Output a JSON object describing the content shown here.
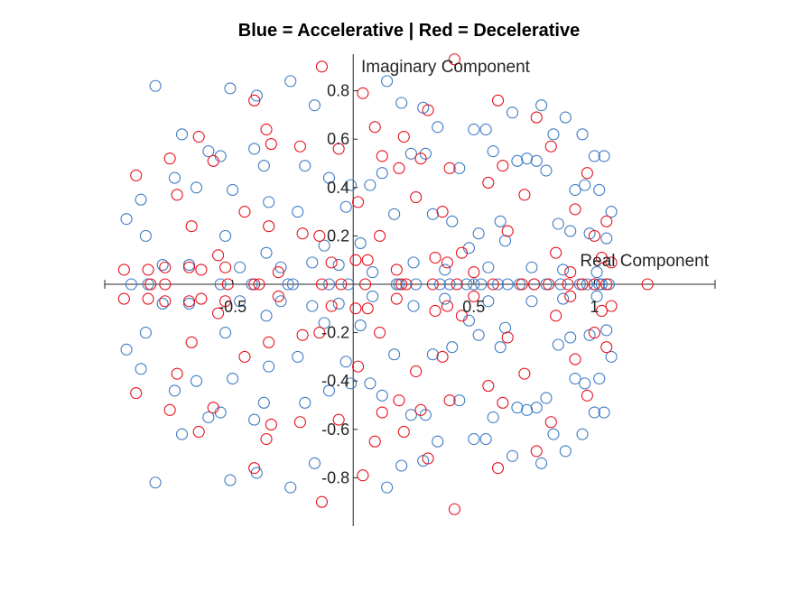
{
  "chart_data": {
    "type": "scatter",
    "title": "Blue = Accelerative | Red = Decelerative",
    "xlabel": "Real Component",
    "ylabel": "Imaginary Component",
    "xlim": [
      -1.03,
      1.5
    ],
    "ylim": [
      -1.0,
      1.0
    ],
    "xticks": [
      -0.5,
      0.5,
      1
    ],
    "xtick_labels": [
      "-0.5",
      "0.5",
      "1"
    ],
    "yticks": [
      -0.8,
      -0.6,
      -0.4,
      -0.2,
      0.2,
      0.4,
      0.6,
      0.8
    ],
    "ytick_labels": [
      "-0.8",
      "-0.6",
      "-0.4",
      "-0.2",
      "0.2",
      "0.4",
      "0.6",
      "0.8"
    ],
    "axis_location": "origin",
    "grid": false,
    "series": [
      {
        "color": "#3e7bc4",
        "marker": "open-circle",
        "x": [
          -0.82,
          -0.51,
          -0.4,
          -0.26,
          -0.16,
          0.14,
          0.2,
          0.29,
          0.35,
          0.5,
          0.55,
          0.66,
          0.78,
          0.83,
          0.88,
          0.95,
          1.0,
          1.04,
          -0.71,
          -0.6,
          -0.55,
          -0.41,
          -0.37,
          -0.2,
          -0.1,
          -0.01,
          0.07,
          0.12,
          0.24,
          0.3,
          0.44,
          0.58,
          0.68,
          0.72,
          0.76,
          0.8,
          0.92,
          0.96,
          1.02,
          1.07,
          -0.88,
          -0.74,
          -0.65,
          -0.5,
          -0.35,
          -0.23,
          -0.03,
          0.17,
          0.33,
          0.41,
          0.52,
          0.61,
          0.85,
          0.98,
          -0.94,
          -0.86,
          -0.53,
          -0.12,
          0.03,
          0.48,
          0.63,
          0.9,
          1.05,
          -0.79,
          -0.68,
          -0.47,
          -0.36,
          -0.3,
          -0.17,
          -0.06,
          0.08,
          0.25,
          0.38,
          0.56,
          0.74,
          0.87,
          1.01,
          -0.82,
          -0.51,
          -0.4,
          -0.26,
          -0.16,
          0.14,
          0.2,
          0.29,
          0.35,
          0.5,
          0.55,
          0.66,
          0.78,
          0.83,
          0.88,
          0.95,
          1.0,
          1.04,
          -0.71,
          -0.6,
          -0.55,
          -0.41,
          -0.37,
          -0.2,
          -0.1,
          -0.01,
          0.07,
          0.12,
          0.24,
          0.3,
          0.44,
          0.58,
          0.68,
          0.72,
          0.76,
          0.8,
          0.92,
          0.96,
          1.02,
          1.07,
          -0.88,
          -0.74,
          -0.65,
          -0.5,
          -0.35,
          -0.23,
          -0.03,
          0.17,
          0.33,
          0.41,
          0.52,
          0.61,
          0.85,
          0.98,
          -0.94,
          -0.86,
          -0.53,
          -0.12,
          0.03,
          0.48,
          0.63,
          0.9,
          1.05,
          -0.79,
          -0.68,
          -0.47,
          -0.36,
          -0.3,
          -0.17,
          -0.06,
          0.08,
          0.25,
          0.38,
          0.56,
          0.74,
          0.87,
          1.01,
          -0.92,
          -0.85,
          -0.55,
          -0.42,
          -0.27,
          -0.25,
          -0.1,
          -0.02,
          0.18,
          0.19,
          0.26,
          0.36,
          0.4,
          0.47,
          0.5,
          0.53,
          0.6,
          0.64,
          0.69,
          0.75,
          0.8,
          0.86,
          0.94,
          0.97,
          1.0,
          1.02,
          1.03,
          1.06
        ],
        "y": [
          0.82,
          0.81,
          0.78,
          0.84,
          0.74,
          0.84,
          0.75,
          0.73,
          0.65,
          0.64,
          0.64,
          0.71,
          0.74,
          0.62,
          0.69,
          0.62,
          0.53,
          0.53,
          0.62,
          0.55,
          0.53,
          0.56,
          0.49,
          0.49,
          0.44,
          0.41,
          0.41,
          0.46,
          0.54,
          0.54,
          0.48,
          0.55,
          0.51,
          0.52,
          0.51,
          0.47,
          0.39,
          0.41,
          0.39,
          0.3,
          0.35,
          0.44,
          0.4,
          0.39,
          0.34,
          0.3,
          0.32,
          0.29,
          0.29,
          0.26,
          0.21,
          0.26,
          0.25,
          0.21,
          0.27,
          0.2,
          0.2,
          0.16,
          0.17,
          0.15,
          0.18,
          0.22,
          0.19,
          0.08,
          0.08,
          0.07,
          0.13,
          0.07,
          0.09,
          0.08,
          0.05,
          0.09,
          0.06,
          0.07,
          0.07,
          0.06,
          0.05,
          -0.82,
          -0.81,
          -0.78,
          -0.84,
          -0.74,
          -0.84,
          -0.75,
          -0.73,
          -0.65,
          -0.64,
          -0.64,
          -0.71,
          -0.74,
          -0.62,
          -0.69,
          -0.62,
          -0.53,
          -0.53,
          -0.62,
          -0.55,
          -0.53,
          -0.56,
          -0.49,
          -0.49,
          -0.44,
          -0.41,
          -0.41,
          -0.46,
          -0.54,
          -0.54,
          -0.48,
          -0.55,
          -0.51,
          -0.52,
          -0.51,
          -0.47,
          -0.39,
          -0.41,
          -0.39,
          -0.3,
          -0.35,
          -0.44,
          -0.4,
          -0.39,
          -0.34,
          -0.3,
          -0.32,
          -0.29,
          -0.29,
          -0.26,
          -0.21,
          -0.26,
          -0.25,
          -0.21,
          -0.27,
          -0.2,
          -0.2,
          -0.16,
          -0.17,
          -0.15,
          -0.18,
          -0.22,
          -0.19,
          -0.08,
          -0.08,
          -0.07,
          -0.13,
          -0.07,
          -0.09,
          -0.08,
          -0.05,
          -0.09,
          -0.06,
          -0.07,
          -0.07,
          -0.06,
          -0.05,
          0,
          0,
          0,
          0,
          0,
          0,
          0,
          0,
          0,
          0,
          0,
          0,
          0,
          0,
          0,
          0,
          0,
          0,
          0,
          0,
          0,
          0,
          0,
          0,
          0,
          0,
          0,
          0
        ]
      },
      {
        "color": "#e8101c",
        "marker": "open-circle",
        "x": [
          -0.13,
          0.42,
          -0.41,
          0.04,
          0.6,
          0.76,
          -0.36,
          -0.22,
          0.09,
          0.21,
          0.31,
          -0.64,
          -0.34,
          0.4,
          0.82,
          0.97,
          -0.76,
          -0.58,
          -0.06,
          0.12,
          0.19,
          0.28,
          0.62,
          -0.9,
          -0.73,
          -0.45,
          -0.21,
          0.02,
          0.26,
          0.37,
          0.56,
          0.71,
          0.92,
          1.05,
          -0.67,
          -0.35,
          -0.14,
          0.11,
          0.45,
          0.64,
          1.0,
          -0.56,
          -0.09,
          0.06,
          0.34,
          0.84,
          1.07,
          -0.78,
          -0.53,
          -0.31,
          0.39,
          0.9,
          -0.85,
          -0.63,
          0.01,
          0.18,
          0.5,
          1.03,
          -0.95,
          -0.68,
          -0.13,
          0.42,
          -0.41,
          0.04,
          0.6,
          0.76,
          -0.36,
          -0.22,
          0.09,
          0.21,
          0.31,
          -0.64,
          -0.34,
          0.4,
          0.82,
          0.97,
          -0.76,
          -0.58,
          -0.06,
          0.12,
          0.19,
          0.28,
          0.62,
          -0.9,
          -0.73,
          -0.45,
          -0.21,
          0.02,
          0.26,
          0.37,
          0.56,
          0.71,
          0.92,
          1.05,
          -0.67,
          -0.35,
          -0.14,
          0.11,
          0.45,
          0.64,
          1.0,
          -0.56,
          -0.09,
          0.06,
          0.34,
          0.84,
          1.07,
          -0.78,
          -0.53,
          -0.31,
          0.39,
          0.9,
          -0.85,
          -0.63,
          0.01,
          0.18,
          0.5,
          1.03,
          -0.95,
          -0.68,
          -0.84,
          -0.78,
          -0.52,
          -0.41,
          -0.39,
          -0.13,
          -0.05,
          0.05,
          0.2,
          0.22,
          0.33,
          0.43,
          0.58,
          0.7,
          0.75,
          0.81,
          0.89,
          0.95,
          1.0,
          1.05,
          1.22
        ],
        "y": [
          0.9,
          0.93,
          0.76,
          0.79,
          0.76,
          0.69,
          0.64,
          0.57,
          0.65,
          0.61,
          0.72,
          0.61,
          0.58,
          0.48,
          0.57,
          0.46,
          0.52,
          0.51,
          0.56,
          0.53,
          0.48,
          0.52,
          0.49,
          0.45,
          0.37,
          0.3,
          0.21,
          0.34,
          0.36,
          0.3,
          0.42,
          0.37,
          0.31,
          0.26,
          0.24,
          0.24,
          0.2,
          0.2,
          0.13,
          0.22,
          0.2,
          0.12,
          0.09,
          0.1,
          0.11,
          0.13,
          0.09,
          0.07,
          0.07,
          0.05,
          0.09,
          0.05,
          0.06,
          0.06,
          0.1,
          0.06,
          0.05,
          0.11,
          0.06,
          0.07,
          -0.9,
          -0.93,
          -0.76,
          -0.79,
          -0.76,
          -0.69,
          -0.64,
          -0.57,
          -0.65,
          -0.61,
          -0.72,
          -0.61,
          -0.58,
          -0.48,
          -0.57,
          -0.46,
          -0.52,
          -0.51,
          -0.56,
          -0.53,
          -0.48,
          -0.52,
          -0.49,
          -0.45,
          -0.37,
          -0.3,
          -0.21,
          -0.34,
          -0.36,
          -0.3,
          -0.42,
          -0.37,
          -0.31,
          -0.26,
          -0.24,
          -0.24,
          -0.2,
          -0.2,
          -0.13,
          -0.22,
          -0.2,
          -0.12,
          -0.09,
          -0.1,
          -0.11,
          -0.13,
          -0.09,
          -0.07,
          -0.07,
          -0.05,
          -0.09,
          -0.05,
          -0.06,
          -0.06,
          -0.1,
          -0.06,
          -0.05,
          -0.11,
          -0.06,
          -0.07,
          0,
          0,
          0,
          0,
          0,
          0,
          0,
          0,
          0,
          0,
          0,
          0,
          0,
          0,
          0,
          0,
          0,
          0,
          0,
          0,
          0
        ]
      }
    ]
  }
}
